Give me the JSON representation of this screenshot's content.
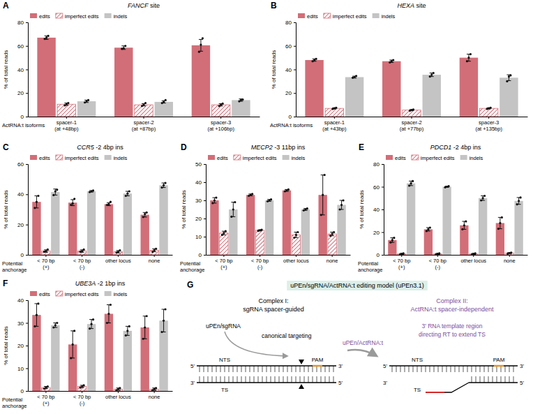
{
  "chart_data": [
    {
      "type": "bar",
      "panel": "A",
      "title": "FANCF site",
      "x_label": "ActRNA:t isoforms",
      "y_label": "% of total reads",
      "categories": [
        "spacer-1 (at +48bp)",
        "spacer-2 (at +87bp)",
        "spacer-3 (at +106bp)"
      ],
      "ylim": [
        0,
        80
      ],
      "yticks": [
        0,
        20,
        40,
        60,
        80
      ],
      "grid": false,
      "legend": "top-left",
      "series": [
        {
          "name": "edits",
          "color": "#d26e78",
          "values": [
            67,
            58.5,
            60.5
          ],
          "errors": [
            1.5,
            1.5,
            5
          ],
          "replicates": [
            [
              66,
              67,
              68.5
            ],
            [
              57.5,
              58,
              60
            ],
            [
              55,
              61,
              66.5
            ]
          ]
        },
        {
          "name": "imperfect edits",
          "color": "#d26e78",
          "line_style": "hatch",
          "values": [
            10.5,
            10,
            10
          ],
          "errors": [
            1,
            1,
            1
          ],
          "replicates": [
            [
              9.5,
              10.5,
              11.5
            ],
            [
              9,
              10,
              11.5
            ],
            [
              9,
              10,
              11
            ]
          ]
        },
        {
          "name": "indels",
          "color": "#c4c4c4",
          "values": [
            13,
            12.5,
            14
          ],
          "errors": [
            1,
            1,
            1
          ],
          "replicates": [
            [
              12,
              13,
              14
            ],
            [
              11.5,
              12.5,
              14
            ],
            [
              13,
              14,
              14.5
            ]
          ]
        }
      ]
    },
    {
      "type": "bar",
      "panel": "B",
      "title": "HEXA site",
      "x_label": "ActRNA:t isoforms",
      "y_label": "% of total reads",
      "categories": [
        "spacer-1 (at +43bp)",
        "spacer-2 (at +77bp)",
        "spacer-3 (at +135bp)"
      ],
      "ylim": [
        0,
        80
      ],
      "yticks": [
        0,
        20,
        40,
        60,
        80
      ],
      "grid": false,
      "legend": "top-left",
      "series": [
        {
          "name": "edits",
          "color": "#d26e78",
          "values": [
            48,
            47,
            50
          ],
          "errors": [
            1,
            1,
            3
          ],
          "replicates": [
            [
              47,
              48,
              49
            ],
            [
              46,
              47,
              48
            ],
            [
              47,
              50,
              53
            ]
          ]
        },
        {
          "name": "imperfect edits",
          "color": "#d26e78",
          "line_style": "hatch",
          "values": [
            7,
            5.5,
            7
          ],
          "errors": [
            0.5,
            0.5,
            0.5
          ],
          "replicates": [
            [
              6.5,
              7,
              7.5
            ],
            [
              5,
              5.5,
              6
            ],
            [
              6.5,
              7,
              7.5
            ]
          ]
        },
        {
          "name": "indels",
          "color": "#c4c4c4",
          "values": [
            33.5,
            35.5,
            33
          ],
          "errors": [
            0.8,
            1.5,
            2.5
          ],
          "replicates": [
            [
              33,
              33.5,
              34.5
            ],
            [
              34,
              35.5,
              37
            ],
            [
              30,
              34,
              35
            ]
          ]
        }
      ]
    },
    {
      "type": "bar",
      "panel": "C",
      "title": "CCR5 -2 4bp ins",
      "x_label": "Potential anchorage",
      "y_label": "% of total reads",
      "categories": [
        "< 70 bp (+)",
        "< 70 bp (-)",
        "other locus",
        "none"
      ],
      "ylim": [
        0,
        60
      ],
      "yticks": [
        0,
        20,
        40,
        60
      ],
      "grid": false,
      "legend": "top-left",
      "series": [
        {
          "name": "edits",
          "color": "#d26e78",
          "values": [
            35,
            34.5,
            33.5,
            26.5
          ],
          "errors": [
            4,
            2,
            1,
            1.5
          ],
          "replicates": [
            [
              31,
              35,
              39
            ],
            [
              33,
              34,
              37
            ],
            [
              33,
              33.5,
              35
            ],
            [
              25,
              27,
              28
            ]
          ]
        },
        {
          "name": "imperfect edits",
          "color": "#d26e78",
          "line_style": "hatch",
          "values": [
            2.5,
            2.5,
            2,
            3
          ],
          "errors": [
            0.8,
            0.8,
            0.8,
            1
          ],
          "replicates": [
            [
              2,
              2.5,
              3.5
            ],
            [
              2,
              2.5,
              3.5
            ],
            [
              1.5,
              2,
              3
            ],
            [
              2,
              3,
              4
            ]
          ]
        },
        {
          "name": "indels",
          "color": "#c4c4c4",
          "values": [
            41.5,
            42,
            40.5,
            46
          ],
          "errors": [
            2,
            0.5,
            1.5,
            1.5
          ],
          "replicates": [
            [
              39.5,
              42,
              43
            ],
            [
              41.5,
              42,
              42.5
            ],
            [
              39,
              40.5,
              42
            ],
            [
              44.5,
              46,
              47.5
            ]
          ]
        }
      ]
    },
    {
      "type": "bar",
      "panel": "D",
      "title": "MECP2 -3 11bp ins",
      "x_label": "Potential anchorage",
      "y_label": "% of total reads",
      "categories": [
        "< 70 bp (+)",
        "< 70 bp (-)",
        "other locus",
        "none"
      ],
      "ylim": [
        0,
        50
      ],
      "yticks": [
        0,
        10,
        20,
        30,
        40,
        50
      ],
      "grid": false,
      "legend": "top-left",
      "series": [
        {
          "name": "edits",
          "color": "#d26e78",
          "values": [
            30,
            33,
            35.5,
            33
          ],
          "errors": [
            1.5,
            0.5,
            0.5,
            11
          ],
          "replicates": [
            [
              28.5,
              30,
              31.5
            ],
            [
              32.5,
              33,
              33.5
            ],
            [
              35,
              35.5,
              36
            ],
            [
              22,
              33,
              44
            ]
          ]
        },
        {
          "name": "imperfect edits",
          "color": "#d26e78",
          "line_style": "hatch",
          "values": [
            12,
            13.5,
            11,
            11.5
          ],
          "errors": [
            1,
            0.3,
            1.5,
            1
          ],
          "replicates": [
            [
              11,
              12,
              13
            ],
            [
              13.2,
              13.5,
              13.8
            ],
            [
              9.5,
              11,
              12.5
            ],
            [
              10.5,
              11.5,
              12.5
            ]
          ]
        },
        {
          "name": "indels",
          "color": "#c4c4c4",
          "values": [
            25,
            30,
            25,
            27.5
          ],
          "errors": [
            4,
            0.5,
            0.5,
            2.5
          ],
          "replicates": [
            [
              21,
              25,
              29
            ],
            [
              29.5,
              30,
              30.5
            ],
            [
              24.5,
              25,
              25.5
            ],
            [
              25,
              27.5,
              30
            ]
          ]
        }
      ]
    },
    {
      "type": "bar",
      "panel": "E",
      "title": "PDCD1 -2 4bp ins",
      "x_label": "Potential anchorage",
      "y_label": "% of total reads",
      "categories": [
        "< 70 bp (+)",
        "< 70 bp (-)",
        "other locus",
        "none"
      ],
      "ylim": [
        0,
        80
      ],
      "yticks": [
        0,
        20,
        40,
        60,
        80
      ],
      "grid": false,
      "legend": "top-left",
      "series": [
        {
          "name": "edits",
          "color": "#d26e78",
          "values": [
            13,
            22.5,
            26,
            28
          ],
          "errors": [
            2,
            1.5,
            3.5,
            5
          ],
          "replicates": [
            [
              11,
              13,
              15
            ],
            [
              21,
              22.5,
              24
            ],
            [
              22.5,
              26,
              29.5
            ],
            [
              23,
              28,
              33
            ]
          ]
        },
        {
          "name": "imperfect edits",
          "color": "#d26e78",
          "line_style": "hatch",
          "values": [
            0.8,
            0.8,
            0.8,
            1.5
          ],
          "errors": [
            0.5,
            0.5,
            0.5,
            0.5
          ],
          "replicates": [
            [
              0.3,
              0.8,
              1.3
            ],
            [
              0.3,
              0.8,
              1.3
            ],
            [
              0.3,
              0.8,
              1.3
            ],
            [
              1,
              1.5,
              2
            ]
          ]
        },
        {
          "name": "indels",
          "color": "#c4c4c4",
          "values": [
            63,
            60,
            50,
            47.5
          ],
          "errors": [
            2,
            0.5,
            2,
            3
          ],
          "replicates": [
            [
              61,
              63,
              65
            ],
            [
              59.5,
              60,
              60.5
            ],
            [
              48,
              50,
              52
            ],
            [
              44.5,
              47.5,
              50.5
            ]
          ]
        }
      ]
    },
    {
      "type": "bar",
      "panel": "F",
      "title": "UBE3A -2 1bp ins",
      "x_label": "Potential anchorage",
      "y_label": "% of total reads",
      "categories": [
        "< 70 bp (+)",
        "< 70 bp (-)",
        "other locus",
        "none"
      ],
      "ylim": [
        0,
        40
      ],
      "yticks": [
        0,
        10,
        20,
        30,
        40
      ],
      "grid": false,
      "legend": "top-left",
      "series": [
        {
          "name": "edits",
          "color": "#d26e78",
          "values": [
            33.5,
            20.5,
            34,
            28
          ],
          "errors": [
            5,
            6,
            4,
            5
          ],
          "replicates": [
            [
              28.5,
              33.5,
              38.5
            ],
            [
              14.5,
              20.5,
              26.5
            ],
            [
              30,
              34,
              38
            ],
            [
              23,
              28,
              33
            ]
          ]
        },
        {
          "name": "imperfect edits",
          "color": "#d26e78",
          "line_style": "hatch",
          "values": [
            1.5,
            2,
            0.8,
            0.8
          ],
          "errors": [
            0.5,
            0.5,
            0.5,
            0.5
          ],
          "replicates": [
            [
              1,
              1.5,
              2
            ],
            [
              1.5,
              2,
              2.5
            ],
            [
              0.3,
              0.8,
              1.3
            ],
            [
              0.3,
              0.8,
              1.3
            ]
          ]
        },
        {
          "name": "indels",
          "color": "#c4c4c4",
          "values": [
            29,
            29.5,
            26.5,
            31
          ],
          "errors": [
            1,
            2,
            2,
            5
          ],
          "replicates": [
            [
              28,
              29,
              30
            ],
            [
              27.5,
              29.5,
              31.5
            ],
            [
              24.5,
              26.5,
              28.5
            ],
            [
              26,
              31,
              36
            ]
          ]
        }
      ]
    }
  ],
  "diagram": {
    "panel": "G",
    "title": "uPEn/sgRNA/ActRNA:t editing model (uPEn3.1)",
    "complex_1": {
      "heading": "Complex I:",
      "subtitle": "sgRNA spacer-guided",
      "enzyme": "uPEn/sgRNA",
      "note": "canonical targeting"
    },
    "complex_2": {
      "heading": "Complex II:",
      "subtitle": "ActRNA:t spacer-independent",
      "enzyme": "uPEn/ActRNA:t",
      "note": [
        "3' RNA template region",
        "directing RT to extend TS"
      ]
    },
    "dna": {
      "five_prime": "5'",
      "three_prime": "3'",
      "top_strand": "NTS",
      "bottom_strand": "TS",
      "pam": "PAM"
    }
  }
}
